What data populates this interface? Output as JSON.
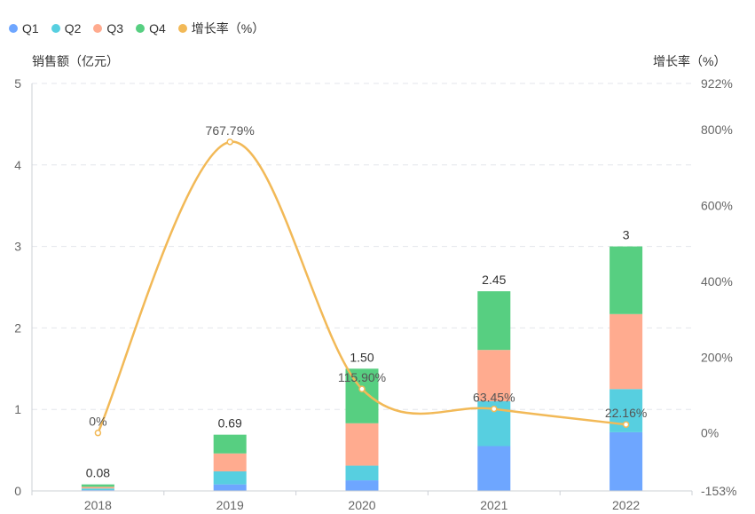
{
  "chart_data": {
    "type": "bar",
    "categories": [
      "2018",
      "2019",
      "2020",
      "2021",
      "2022"
    ],
    "series": [
      {
        "name": "Q1",
        "color": "#6ea6ff",
        "values": [
          0.01,
          0.08,
          0.13,
          0.55,
          0.72
        ]
      },
      {
        "name": "Q2",
        "color": "#57cfe0",
        "values": [
          0.02,
          0.16,
          0.18,
          0.55,
          0.53
        ]
      },
      {
        "name": "Q3",
        "color": "#ffab8f",
        "values": [
          0.02,
          0.22,
          0.52,
          0.63,
          0.92
        ]
      },
      {
        "name": "Q4",
        "color": "#57cf81",
        "values": [
          0.03,
          0.23,
          0.67,
          0.72,
          0.83
        ]
      }
    ],
    "totals_labels": [
      "0.08",
      "0.69",
      "1.50",
      "2.45",
      "3"
    ],
    "line_series": {
      "name": "增长率（%）",
      "color": "#f2b957",
      "values": [
        0,
        767.79,
        115.9,
        63.45,
        22.16
      ],
      "labels": [
        "0%",
        "767.79%",
        "115.90%",
        "63.45%",
        "22.16%"
      ]
    },
    "y_left": {
      "label": "销售额（亿元）",
      "min": 0,
      "max": 5,
      "ticks": [
        "0",
        "1",
        "2",
        "3",
        "4",
        "5"
      ]
    },
    "y_right": {
      "label": "增长率（%）",
      "min": -153,
      "max": 922,
      "ticks": [
        "-153%",
        "0%",
        "200%",
        "400%",
        "600%",
        "800%",
        "922%"
      ],
      "tick_values": [
        -153,
        0,
        200,
        400,
        600,
        800,
        922
      ]
    },
    "grid": true,
    "legend_position": "top-left"
  }
}
